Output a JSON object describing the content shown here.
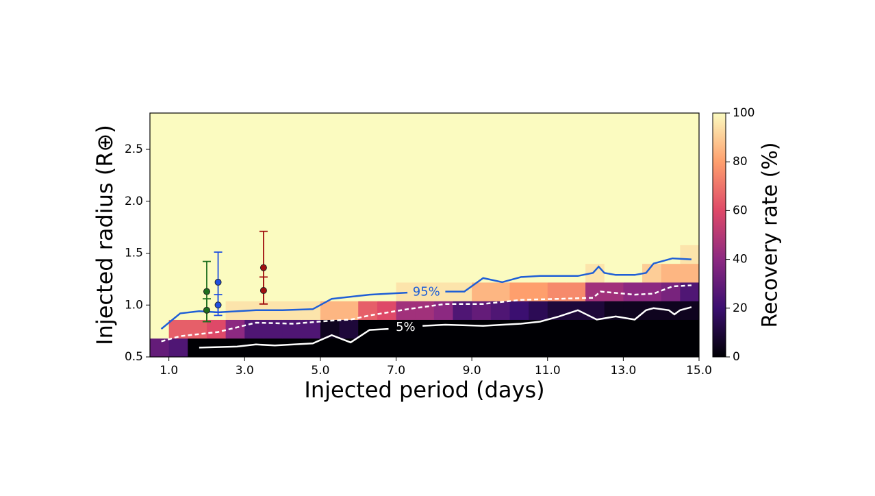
{
  "chart_data": {
    "type": "heatmap",
    "xlabel": "Injected period (days)",
    "ylabel": "Injected radius (R⊕)",
    "xlim": [
      0.5,
      15.0
    ],
    "ylim": [
      0.5,
      2.85
    ],
    "xticks": [
      {
        "value": 1,
        "label": "1.0"
      },
      {
        "value": 3,
        "label": "3.0"
      },
      {
        "value": 5,
        "label": "5.0"
      },
      {
        "value": 7,
        "label": "7.0"
      },
      {
        "value": 9,
        "label": "9.0"
      },
      {
        "value": 11,
        "label": "11.0"
      },
      {
        "value": 13,
        "label": "13.0"
      },
      {
        "value": 15,
        "label": "15.0"
      }
    ],
    "yticks": [
      0.5,
      {
        "value": 1,
        "label": "1.0"
      },
      1.5,
      {
        "value": 2,
        "label": "2.0"
      },
      2.5
    ],
    "x_bins": [
      0.5,
      1.0,
      1.5,
      2.0,
      2.5,
      3.0,
      3.5,
      4.0,
      4.5,
      5.0,
      5.5,
      6.0,
      6.5,
      7.0,
      7.5,
      8.0,
      8.5,
      9.0,
      9.5,
      10.0,
      10.5,
      11.0,
      11.5,
      12.0,
      12.5,
      13.0,
      13.5,
      14.0,
      14.5,
      15.0
    ],
    "y_bins": [
      0.5,
      0.68,
      0.86,
      1.04,
      1.22,
      1.4,
      1.58,
      2.85
    ],
    "z": [
      [
        30,
        25,
        0,
        0,
        0,
        0,
        0,
        0,
        0,
        0,
        0,
        0,
        0,
        0,
        0,
        0,
        0,
        0,
        0,
        0,
        0,
        0,
        0,
        0,
        0,
        0,
        0,
        0,
        0
      ],
      [
        100,
        65,
        65,
        60,
        40,
        25,
        25,
        25,
        25,
        5,
        10,
        0,
        0,
        0,
        0,
        0,
        0,
        0,
        0,
        0,
        0,
        0,
        0,
        0,
        0,
        0,
        0,
        0,
        0
      ],
      [
        100,
        100,
        100,
        100,
        95,
        95,
        95,
        95,
        95,
        85,
        85,
        65,
        60,
        45,
        45,
        40,
        25,
        30,
        25,
        20,
        15,
        10,
        10,
        10,
        5,
        5,
        5,
        5,
        5
      ],
      [
        100,
        100,
        100,
        100,
        100,
        100,
        100,
        100,
        100,
        100,
        100,
        100,
        100,
        95,
        95,
        95,
        95,
        85,
        85,
        80,
        80,
        75,
        75,
        45,
        45,
        40,
        40,
        35,
        25
      ],
      [
        100,
        100,
        100,
        100,
        100,
        100,
        100,
        100,
        100,
        100,
        100,
        100,
        100,
        100,
        100,
        100,
        100,
        100,
        100,
        100,
        100,
        100,
        100,
        95,
        100,
        100,
        90,
        85,
        85
      ],
      [
        100,
        100,
        100,
        100,
        100,
        100,
        100,
        100,
        100,
        100,
        100,
        100,
        100,
        100,
        100,
        100,
        100,
        100,
        100,
        100,
        100,
        100,
        100,
        100,
        100,
        100,
        100,
        100,
        95
      ],
      [
        100,
        100,
        100,
        100,
        100,
        100,
        100,
        100,
        100,
        100,
        100,
        100,
        100,
        100,
        100,
        100,
        100,
        100,
        100,
        100,
        100,
        100,
        100,
        100,
        100,
        100,
        100,
        100,
        100
      ]
    ],
    "colormap": [
      "#000004",
      "#3b0f70",
      "#8c2981",
      "#de4968",
      "#fe9f6d",
      "#fbfbc0"
    ],
    "clim": [
      0,
      100
    ],
    "cticks": [
      0,
      20,
      40,
      60,
      80,
      100
    ],
    "clabel": "Recovery rate (%)",
    "contours": [
      {
        "label": "95%",
        "color": "#1f5fd6",
        "dashed": false,
        "x": [
          0.8,
          1.3,
          1.8,
          2.3,
          3.3,
          4.0,
          4.8,
          5.3,
          6.3,
          7.3,
          7.8,
          8.3,
          8.8,
          9.3,
          9.8,
          10.3,
          10.8,
          11.8,
          12.2,
          12.35,
          12.5,
          12.8,
          13.3,
          13.6,
          13.8,
          14.3,
          14.8
        ],
        "y": [
          0.77,
          0.92,
          0.94,
          0.93,
          0.95,
          0.95,
          0.96,
          1.06,
          1.1,
          1.12,
          null,
          1.13,
          1.13,
          1.26,
          1.22,
          1.27,
          1.28,
          1.28,
          1.31,
          1.37,
          1.31,
          1.29,
          1.29,
          1.31,
          1.4,
          1.45,
          1.44
        ]
      },
      {
        "color": "#ffffff",
        "dashed": true,
        "x": [
          0.8,
          1.3,
          2.3,
          3.3,
          4.3,
          5.3,
          5.8,
          6.3,
          7.3,
          8.3,
          9.3,
          10.3,
          11.3,
          12.2,
          12.4,
          13.3,
          13.8,
          14.3,
          14.8
        ],
        "y": [
          0.65,
          0.7,
          0.74,
          0.83,
          0.82,
          0.85,
          0.86,
          0.9,
          0.96,
          1.01,
          1.01,
          1.05,
          1.06,
          1.07,
          1.13,
          1.1,
          1.11,
          1.18,
          1.19
        ]
      },
      {
        "label": "5%",
        "color": "#ffffff",
        "dashed": false,
        "x": [
          1.8,
          2.8,
          3.3,
          3.8,
          4.8,
          5.3,
          5.8,
          6.3,
          6.8,
          7.25,
          7.7,
          8.3,
          9.3,
          10.3,
          10.8,
          11.3,
          11.8,
          12.3,
          12.8,
          13.3,
          13.6,
          13.8,
          14.2,
          14.35,
          14.5,
          14.8
        ],
        "y": [
          0.59,
          0.6,
          0.62,
          0.61,
          0.63,
          0.71,
          0.64,
          0.76,
          0.77,
          null,
          0.8,
          0.81,
          0.8,
          0.82,
          0.84,
          0.89,
          0.95,
          0.86,
          0.89,
          0.86,
          0.95,
          0.97,
          0.95,
          0.91,
          0.95,
          0.98
        ]
      }
    ],
    "errorbars": [
      {
        "color": "#1e6e1e",
        "x": [
          2.0,
          2.0
        ],
        "y": [
          1.13,
          0.95
        ],
        "yerr": [
          0.29,
          0.11
        ]
      },
      {
        "color": "#1f4fe0",
        "x": [
          2.3,
          2.3
        ],
        "y": [
          1.22,
          1.0
        ],
        "yerr": [
          0.29,
          0.1
        ]
      },
      {
        "color": "#a01010",
        "x": [
          3.5,
          3.5
        ],
        "y": [
          1.36,
          1.14
        ],
        "yerr": [
          0.35,
          0.13
        ]
      }
    ]
  }
}
